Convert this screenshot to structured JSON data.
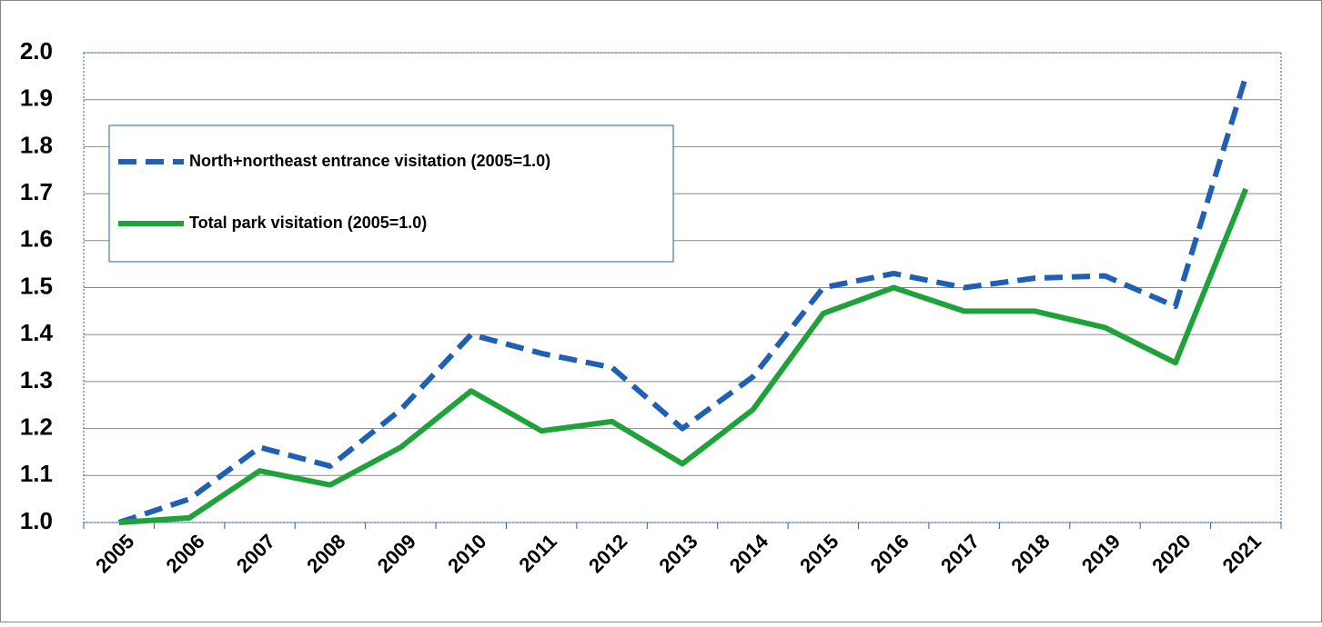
{
  "chart_data": {
    "type": "line",
    "categories": [
      "2005",
      "2006",
      "2007",
      "2008",
      "2009",
      "2010",
      "2011",
      "2012",
      "2013",
      "2014",
      "2015",
      "2016",
      "2017",
      "2018",
      "2019",
      "2020",
      "2021"
    ],
    "series": [
      {
        "name": "North+northeast entrance visitation (2005=1.0)",
        "color": "#1f5fb4",
        "dash": true,
        "values": [
          1.0,
          1.05,
          1.16,
          1.12,
          1.24,
          1.4,
          1.36,
          1.33,
          1.2,
          1.31,
          1.5,
          1.53,
          1.5,
          1.52,
          1.525,
          1.46,
          1.95
        ]
      },
      {
        "name": "Total park visitation (2005=1.0)",
        "color": "#1fa23a",
        "dash": false,
        "values": [
          1.0,
          1.01,
          1.11,
          1.08,
          1.16,
          1.28,
          1.195,
          1.215,
          1.125,
          1.24,
          1.445,
          1.5,
          1.45,
          1.45,
          1.415,
          1.34,
          1.71
        ]
      }
    ],
    "ylim": [
      1.0,
      2.0
    ],
    "yticks": [
      {
        "value": 1.0,
        "label": "1.0"
      },
      1.1,
      1.2,
      1.3,
      1.4,
      1.5,
      1.6,
      1.7,
      1.8,
      1.9,
      {
        "value": 2.0,
        "label": "2.0"
      }
    ],
    "grid": true,
    "legend": "upper-left"
  }
}
